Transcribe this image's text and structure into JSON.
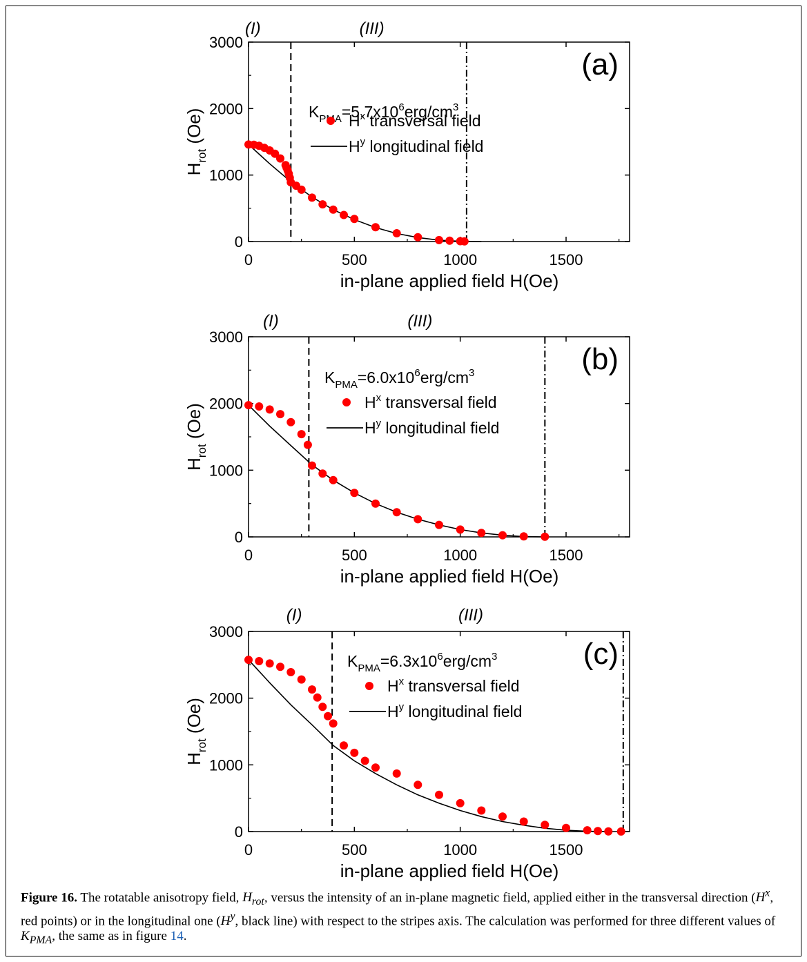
{
  "chart_data": [
    {
      "type": "scatter",
      "panel_label": "(a)",
      "region_labels": [
        "(I)",
        "(III)"
      ],
      "xlabel": "in-plane applied field H(Oe)",
      "ylabel_main": "H",
      "ylabel_sub": "rot",
      "ylabel_unit": " (Oe)",
      "xlim": [
        0,
        1800
      ],
      "ylim": [
        0,
        3000
      ],
      "xticks": [
        0,
        500,
        1000,
        1500
      ],
      "yticks": [
        0,
        1000,
        2000,
        3000
      ],
      "k_main": "K",
      "k_sub": "PMA",
      "k_value": "=5.7x10",
      "k_exp": "6",
      "k_unit": "erg/cm",
      "k_unit_exp": "3",
      "legend": {
        "points_main": "H",
        "points_sup": "x",
        "points_text": " transversal  field",
        "line_main": "H",
        "line_sup": "y",
        "line_text": " longitudinal field"
      },
      "dashed_line_x": 200,
      "dashdot_line_x": 1030,
      "series": [
        {
          "kind": "points",
          "color": "#ff0000",
          "x": [
            0,
            25,
            50,
            75,
            100,
            125,
            150,
            175,
            180,
            185,
            190,
            195,
            200,
            225,
            250,
            300,
            350,
            400,
            450,
            500,
            600,
            700,
            800,
            900,
            950,
            1000,
            1020
          ],
          "y": [
            1460,
            1455,
            1440,
            1410,
            1370,
            1320,
            1250,
            1150,
            1110,
            1070,
            1020,
            960,
            890,
            840,
            780,
            660,
            560,
            480,
            400,
            340,
            215,
            125,
            65,
            22,
            12,
            5,
            2
          ]
        },
        {
          "kind": "line",
          "color": "#000000",
          "x": [
            0,
            100,
            200,
            300,
            400,
            500,
            600,
            700,
            800,
            900,
            1000,
            1100
          ],
          "y": [
            1460,
            1170,
            900,
            670,
            480,
            330,
            210,
            120,
            60,
            20,
            5,
            0
          ]
        }
      ]
    },
    {
      "type": "scatter",
      "panel_label": "(b)",
      "region_labels": [
        "(I)",
        "(III)"
      ],
      "xlabel": "in-plane applied field H(Oe)",
      "ylabel_main": "H",
      "ylabel_sub": "rot",
      "ylabel_unit": " (Oe)",
      "xlim": [
        0,
        1800
      ],
      "ylim": [
        0,
        3000
      ],
      "xticks": [
        0,
        500,
        1000,
        1500
      ],
      "yticks": [
        0,
        1000,
        2000,
        3000
      ],
      "k_main": "K",
      "k_sub": "PMA",
      "k_value": "=6.0x10",
      "k_exp": "6",
      "k_unit": "erg/cm",
      "k_unit_exp": "3",
      "legend": {
        "points_main": "H",
        "points_sup": "x",
        "points_text": " transversal  field",
        "line_main": "H",
        "line_sup": "y",
        "line_text": " longitudinal field"
      },
      "dashed_line_x": 285,
      "dashdot_line_x": 1400,
      "series": [
        {
          "kind": "points",
          "color": "#ff0000",
          "x": [
            0,
            50,
            100,
            150,
            200,
            250,
            280,
            300,
            350,
            400,
            500,
            600,
            700,
            800,
            900,
            1000,
            1100,
            1200,
            1300,
            1400
          ],
          "y": [
            1975,
            1955,
            1910,
            1840,
            1720,
            1540,
            1380,
            1070,
            950,
            850,
            660,
            500,
            370,
            265,
            180,
            110,
            60,
            25,
            8,
            2
          ]
        },
        {
          "kind": "line",
          "color": "#000000",
          "x": [
            0,
            100,
            200,
            300,
            400,
            500,
            600,
            700,
            800,
            900,
            1000,
            1100,
            1200,
            1300,
            1400
          ],
          "y": [
            1975,
            1660,
            1370,
            1080,
            850,
            660,
            500,
            370,
            265,
            180,
            110,
            60,
            25,
            5,
            0
          ]
        }
      ]
    },
    {
      "type": "scatter",
      "panel_label": "(c)",
      "region_labels": [
        "(I)",
        "(III)"
      ],
      "xlabel": "in-plane applied field H(Oe)",
      "ylabel_main": "H",
      "ylabel_sub": "rot",
      "ylabel_unit": " (Oe)",
      "xlim": [
        0,
        1800
      ],
      "ylim": [
        0,
        3000
      ],
      "xticks": [
        0,
        500,
        1000,
        1500
      ],
      "yticks": [
        0,
        1000,
        2000,
        3000
      ],
      "k_main": "K",
      "k_sub": "PMA",
      "k_value": "=6.3x10",
      "k_exp": "6",
      "k_unit": "erg/cm",
      "k_unit_exp": "3",
      "legend": {
        "points_main": "H",
        "points_sup": "x",
        "points_text": " transversal  field",
        "line_main": "H",
        "line_sup": "y",
        "line_text": " longitudinal field"
      },
      "dashed_line_x": 395,
      "dashdot_line_x": 1770,
      "series": [
        {
          "kind": "points",
          "color": "#ff0000",
          "x": [
            0,
            50,
            100,
            150,
            200,
            250,
            300,
            325,
            350,
            375,
            400,
            450,
            500,
            550,
            600,
            700,
            800,
            900,
            1000,
            1100,
            1200,
            1300,
            1400,
            1500,
            1600,
            1650,
            1700,
            1760
          ],
          "y": [
            2575,
            2555,
            2520,
            2470,
            2390,
            2280,
            2130,
            2010,
            1870,
            1730,
            1620,
            1290,
            1180,
            1060,
            960,
            870,
            700,
            550,
            425,
            315,
            225,
            150,
            100,
            55,
            20,
            8,
            3,
            1
          ]
        },
        {
          "kind": "line",
          "color": "#000000",
          "x": [
            0,
            100,
            200,
            300,
            400,
            500,
            600,
            700,
            800,
            900,
            1000,
            1100,
            1200,
            1300,
            1400,
            1500,
            1600,
            1700
          ],
          "y": [
            2575,
            2230,
            1900,
            1600,
            1290,
            1060,
            870,
            700,
            550,
            425,
            315,
            225,
            150,
            95,
            50,
            20,
            5,
            0
          ]
        }
      ]
    }
  ],
  "caption": {
    "label": "Figure 16.",
    "p1": " The rotatable anisotropy field, ",
    "hrot_main": "H",
    "hrot_sub": "rot",
    "p2": ", versus the intensity of an in-plane magnetic field, applied either in the transversal direction (",
    "hx_main": "H",
    "hx_sup": "x",
    "p3": ", red points) or in the longitudinal one (",
    "hy_main": "H",
    "hy_sup": "y",
    "p4": ", black line) with respect to the stripes axis. The calculation was performed for three different values of ",
    "k_main": "K",
    "k_sub": "PMA",
    "p5": ", the same as in figure ",
    "ref": "14",
    "p6": "."
  }
}
